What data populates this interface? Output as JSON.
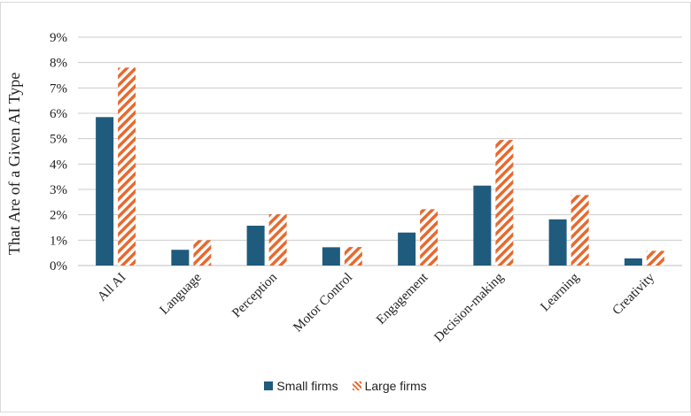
{
  "chart_data": {
    "type": "bar",
    "ylabel": "That Are of a Given AI Type",
    "categories": [
      "All AI",
      "Language",
      "Perception",
      "Motor Control",
      "Engagement",
      "Decision-making",
      "Learning",
      "Creativity"
    ],
    "series": [
      {
        "name": "Small firms",
        "values": [
          5.85,
          0.62,
          1.57,
          0.72,
          1.3,
          3.15,
          1.82,
          0.28
        ],
        "color": "#1f5b7d",
        "pattern": "solid"
      },
      {
        "name": "Large firms",
        "values": [
          7.8,
          1.0,
          2.02,
          0.73,
          2.22,
          4.95,
          2.78,
          0.58
        ],
        "color": "#e8692e",
        "pattern": "diagonal-stripes"
      }
    ],
    "ylim": [
      0,
      9
    ],
    "yticks": [
      "0%",
      "1%",
      "2%",
      "3%",
      "4%",
      "5%",
      "6%",
      "7%",
      "8%",
      "9%"
    ],
    "grid": true,
    "legend_position": "bottom"
  },
  "colors": {
    "frame": "#d9d9d9",
    "grid": "#cccccc",
    "axis": "#bfbfbf"
  }
}
